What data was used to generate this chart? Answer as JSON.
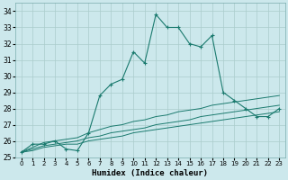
{
  "xlabel": "Humidex (Indice chaleur)",
  "xlim": [
    -0.5,
    23.5
  ],
  "ylim": [
    25,
    34.5
  ],
  "yticks": [
    25,
    26,
    27,
    28,
    29,
    30,
    31,
    32,
    33,
    34
  ],
  "xticks": [
    0,
    1,
    2,
    3,
    4,
    5,
    6,
    7,
    8,
    9,
    10,
    11,
    12,
    13,
    14,
    15,
    16,
    17,
    18,
    19,
    20,
    21,
    22,
    23
  ],
  "bg_color": "#cce8ec",
  "grid_color": "#aacccc",
  "line_color": "#1a7a6e",
  "series": {
    "main": [
      25.3,
      25.8,
      25.8,
      26.0,
      25.5,
      25.4,
      26.5,
      28.8,
      29.5,
      29.8,
      31.5,
      30.8,
      33.8,
      33.0,
      33.0,
      32.0,
      31.8,
      32.5,
      29.0,
      28.5,
      28.0,
      27.5,
      27.5,
      28.0
    ],
    "line1": [
      25.3,
      25.6,
      25.9,
      26.0,
      26.1,
      26.2,
      26.5,
      26.7,
      26.9,
      27.0,
      27.2,
      27.3,
      27.5,
      27.6,
      27.8,
      27.9,
      28.0,
      28.2,
      28.3,
      28.4,
      28.5,
      28.6,
      28.7,
      28.8
    ],
    "line2": [
      25.3,
      25.5,
      25.7,
      25.8,
      25.9,
      26.0,
      26.2,
      26.3,
      26.5,
      26.6,
      26.7,
      26.8,
      27.0,
      27.1,
      27.2,
      27.3,
      27.5,
      27.6,
      27.7,
      27.8,
      27.9,
      28.0,
      28.1,
      28.2
    ],
    "line3": [
      25.3,
      25.4,
      25.6,
      25.7,
      25.8,
      25.8,
      26.0,
      26.1,
      26.2,
      26.3,
      26.5,
      26.6,
      26.7,
      26.8,
      26.9,
      27.0,
      27.1,
      27.2,
      27.3,
      27.4,
      27.5,
      27.6,
      27.7,
      27.8
    ]
  }
}
